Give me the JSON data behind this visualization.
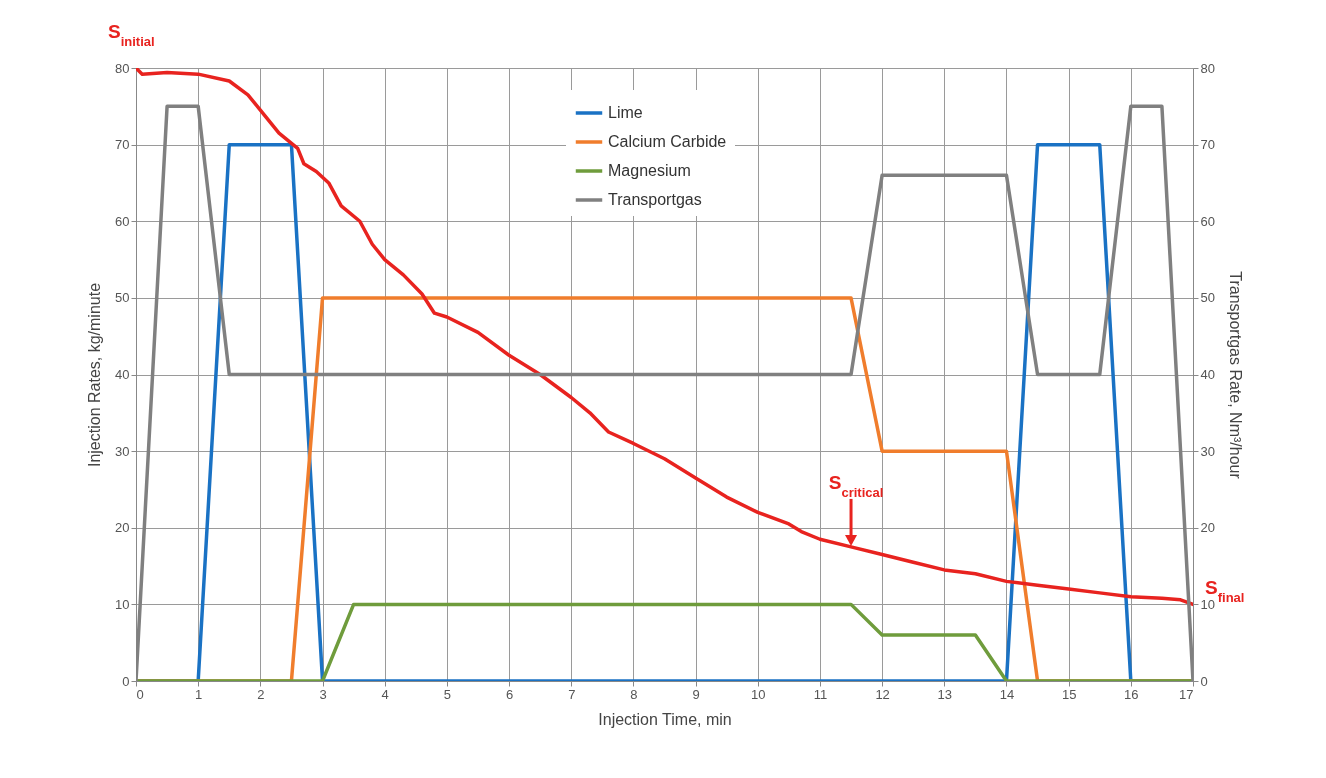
{
  "chart_data": {
    "type": "line",
    "xlabel": "Injection Time, min",
    "ylabel": "Injection Rates, kg/minute",
    "y2label": "Transportgas Rate, Nm³/hour",
    "xlim": [
      0,
      17
    ],
    "xticks": [
      0,
      1,
      2,
      3,
      4,
      5,
      6,
      7,
      8,
      9,
      10,
      11,
      12,
      13,
      14,
      15,
      16,
      17
    ],
    "ylim": [
      0,
      80
    ],
    "yticks": [
      0,
      10,
      20,
      30,
      40,
      50,
      60,
      70,
      80
    ],
    "y2lim": [
      0,
      80
    ],
    "y2ticks": [
      0,
      10,
      20,
      30,
      40,
      50,
      60,
      70,
      80
    ],
    "grid": true,
    "legend": "top",
    "line_style": "solid",
    "series": [
      {
        "name": "Lime",
        "color": "#1a72c4",
        "x": [
          0,
          1,
          1.5,
          2.5,
          3,
          14,
          14.5,
          15.5,
          16,
          17
        ],
        "values": [
          0,
          0,
          70,
          70,
          0,
          0,
          70,
          70,
          0,
          0
        ]
      },
      {
        "name": "Calcium Carbide",
        "color": "#f07d2c",
        "x": [
          0,
          2.5,
          3,
          11.5,
          12,
          14,
          14.5,
          17
        ],
        "values": [
          0,
          0,
          50,
          50,
          30,
          30,
          0,
          0
        ]
      },
      {
        "name": "Magnesium",
        "color": "#6f9c3c",
        "x": [
          0,
          3,
          3.5,
          11.5,
          12,
          13.5,
          14,
          17
        ],
        "values": [
          0,
          0,
          10,
          10,
          6,
          6,
          0,
          0
        ]
      },
      {
        "name": "Transportgas",
        "color": "#808080",
        "axis": "y2",
        "x": [
          0,
          0.5,
          1,
          1.5,
          11.5,
          12,
          14,
          14.5,
          15.5,
          16,
          16.5,
          17
        ],
        "values": [
          0,
          75,
          75,
          40,
          40,
          66,
          66,
          40,
          40,
          75,
          75,
          0
        ]
      },
      {
        "color": "#e8231f",
        "x": [
          0,
          0.1,
          0.5,
          1,
          1.5,
          1.8,
          2,
          2.3,
          2.6,
          2.7,
          2.9,
          3.1,
          3.3,
          3.6,
          3.8,
          4,
          4.3,
          4.6,
          4.8,
          5,
          5.5,
          6,
          6.5,
          7,
          7.3,
          7.6,
          8,
          8.5,
          9,
          9.5,
          10,
          10.5,
          10.7,
          11,
          11.5,
          12,
          12.5,
          13,
          13.5,
          14,
          14.5,
          15,
          15.5,
          16,
          16.5,
          16.8,
          17
        ],
        "values": [
          80,
          79.2,
          79.4,
          79.2,
          78.3,
          76.5,
          74.5,
          71.5,
          69.5,
          67.5,
          66.5,
          65,
          62,
          60,
          57,
          55,
          53,
          50.5,
          48,
          47.5,
          45.5,
          42.5,
          40,
          37,
          35,
          32.5,
          31,
          29,
          26.5,
          24,
          22,
          20.5,
          19.5,
          18.5,
          17.5,
          16.5,
          15.5,
          14.5,
          14,
          13,
          12.5,
          12,
          11.5,
          11,
          10.8,
          10.6,
          10
        ]
      }
    ],
    "annotations": [
      {
        "text": "S$_{initial}$",
        "x": 0,
        "y": 80
      },
      {
        "text": "S$_{critical}$",
        "x": 11.5,
        "y": 17.5
      },
      {
        "text": "S$_{final}$",
        "x": 17,
        "y": 10
      }
    ]
  }
}
